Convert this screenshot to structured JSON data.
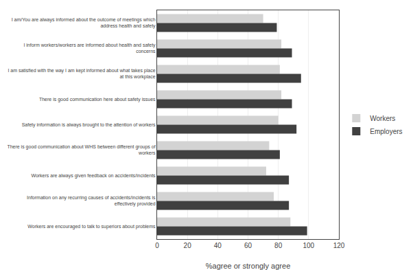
{
  "chart_data": {
    "type": "bar",
    "orientation": "horizontal",
    "categories": [
      "I am/You are always informed about the outcome of meetings which\naddress health and safety",
      "I inform workers/workers are informed about health and safety\nconcerns",
      "I am satisfied with the way I am kept informed about what takes place\nat this workplace",
      "There is good communication here about safety issues",
      "Safety information is always brought to the attention of workers",
      "There is good communication about WHS between different groups of\nworkers",
      "Workers are always given feedback on accidents/incidents",
      "Information on any recurring causes of accidents/incidents is\neffectively provided",
      "Workers are encouraged to talk to superiors about problems"
    ],
    "series": [
      {
        "name": "Workers",
        "color": "#d3d3d3",
        "values": [
          70,
          82,
          81,
          82,
          80,
          74,
          72,
          77,
          88
        ]
      },
      {
        "name": "Employers",
        "color": "#404040",
        "values": [
          79,
          89,
          95,
          89,
          92,
          81,
          87,
          87,
          99
        ]
      }
    ],
    "xlabel": "%agree or strongly agree",
    "xlim": [
      0,
      120
    ],
    "xticks": [
      0,
      20,
      40,
      60,
      80,
      100,
      120
    ],
    "grid": true,
    "legend": "right"
  }
}
